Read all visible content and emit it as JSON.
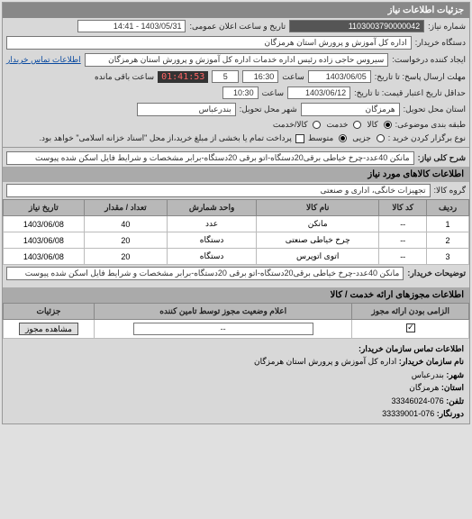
{
  "header": {
    "title": "جزئیات اطلاعات نیاز"
  },
  "request": {
    "number_label": "شماره نیاز:",
    "number": "1103003790000042",
    "announce_label": "تاریخ و ساعت اعلان عمومی:",
    "announce": "1403/05/31 - 14:41",
    "buyer_org_label": "دستگاه خریدار:",
    "buyer_org": "اداره کل آموزش و پرورش استان هرمزگان",
    "requester_label": "ایجاد کننده درخواست:",
    "requester": "سیروس حاجی زاده رئیس اداره خدمات اداره کل آموزش و پرورش استان هرمزگان",
    "contact_link": "اطلاعات تماس خریدار",
    "deadline_reply_label": "مهلت ارسال پاسخ: تا تاریخ:",
    "deadline_reply_date": "1403/06/05",
    "time1_label": "ساعت",
    "deadline_reply_time": "16:30",
    "remaining_days": "5",
    "countdown": "01:41:53",
    "remaining_label": "ساعت باقی مانده",
    "validity_label": "حداقل تاریخ اعتبار قیمت: تا تاریخ:",
    "validity_date": "1403/06/12",
    "time2_label": "ساعت",
    "validity_time": "10:30",
    "delivery_province_label": "استان محل تحویل:",
    "delivery_province": "هرمزگان",
    "delivery_city_label": "شهر محل تحویل:",
    "delivery_city": "بندرعباس",
    "grouping_label": "طبقه بندی موضوعی:",
    "grouping_options": {
      "goods": "کالا",
      "service": "خدمت",
      "both": "کالا/خدمت"
    },
    "grouping_selected": "goods",
    "purchase_type_label": "نوع برگزار کردن خرید :",
    "purchase_options": {
      "small": "جزیی",
      "medium": "متوسط"
    },
    "purchase_selected": "medium",
    "payment_note": "پرداخت تمام یا بخشی از مبلغ خرید،از محل \"اسناد خزانه اسلامی\" خواهد بود.",
    "payment_checked": false,
    "desc_label": "شرح کلی نیاز:",
    "desc": "مانکن 40عدد-چرخ خیاطی برقی20دستگاه-اتو برقی 20دستگاه-برابر مشخصات و شرایط فایل اسکن شده پیوست"
  },
  "goods_section": {
    "title": "اطلاعات کالاهای مورد نیاز",
    "group_label": "گروه کالا:",
    "group": "تجهیزات خانگی، اداری و صنعتی",
    "table": {
      "columns": [
        "ردیف",
        "کد کالا",
        "نام کالا",
        "واحد شمارش",
        "تعداد / مقدار",
        "تاریخ نیاز"
      ],
      "rows": [
        [
          "1",
          "--",
          "مانکن",
          "عدد",
          "40",
          "1403/06/08"
        ],
        [
          "2",
          "--",
          "چرخ خیاطی صنعتی",
          "دستگاه",
          "20",
          "1403/06/08"
        ],
        [
          "3",
          "--",
          "اتوی اتوپرس",
          "دستگاه",
          "20",
          "1403/06/08"
        ]
      ]
    },
    "buyer_desc_label": "توضیحات خریدار:",
    "buyer_desc": "مانکن 40عدد-چرخ خیاطی برقی20دستگاه-اتو برقی 20دستگاه-برابر مشخصات و شرایط فایل اسکن شده پیوست"
  },
  "permits_section": {
    "title": "اطلاعات مجوزهای ارائه خدمت / کالا",
    "table": {
      "columns": [
        "الزامی بودن ارائه مجوز",
        "اعلام وضعیت مجوز توسط تامین کننده",
        "جزئیات"
      ],
      "mandatory_checked": true,
      "status": "--",
      "view_btn": "مشاهده مجوز"
    }
  },
  "contact_section": {
    "title": "اطلاعات تماس سازمان خریدار:",
    "org_label": "نام سازمان خریدار:",
    "org": "اداره کل آموزش و پرورش استان هرمزگان",
    "city_label": "شهر:",
    "city": "بندرعباس",
    "province_label": "استان:",
    "province": "هرمزگان",
    "phone_label": "تلفن:",
    "phone": "076-33346024",
    "fax_label": "دورنگار:",
    "fax": "076-33339001"
  }
}
